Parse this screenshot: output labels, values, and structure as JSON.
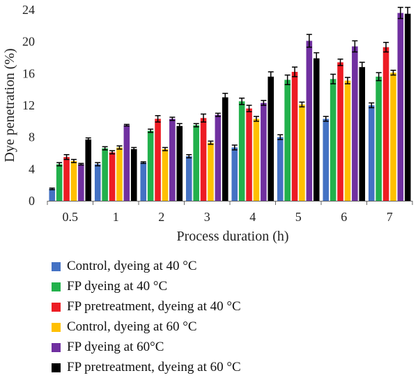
{
  "chart_data": {
    "type": "bar",
    "title": "",
    "xlabel": "Process duration (h)",
    "ylabel": "Dye penetration (%)",
    "ylim": [
      0,
      24
    ],
    "yticks": [
      "0",
      "4",
      "8",
      "12",
      "16",
      "20",
      "24"
    ],
    "categories": [
      "0.5",
      "1",
      "2",
      "3",
      "4",
      "5",
      "6",
      "7"
    ],
    "series": [
      {
        "name": "Control, dyeing at 40 °C",
        "color": "#4472C4",
        "values": [
          1.5,
          4.6,
          4.8,
          5.6,
          6.7,
          8.0,
          10.3,
          12.0
        ],
        "errors": [
          0.1,
          0.2,
          0.1,
          0.2,
          0.3,
          0.3,
          0.3,
          0.3
        ]
      },
      {
        "name": "FP dyeing at 40 °C",
        "color": "#22B14C",
        "values": [
          4.6,
          6.6,
          8.8,
          9.5,
          12.5,
          15.2,
          15.3,
          15.6
        ],
        "errors": [
          0.2,
          0.2,
          0.2,
          0.2,
          0.4,
          0.6,
          0.6,
          0.5
        ]
      },
      {
        "name": "FP pretreatment, dyeing at 40 °C",
        "color": "#ED1C24",
        "values": [
          5.5,
          6.1,
          10.3,
          10.4,
          11.6,
          16.2,
          17.4,
          19.3
        ],
        "errors": [
          0.3,
          0.2,
          0.4,
          0.5,
          0.4,
          0.6,
          0.4,
          0.6
        ]
      },
      {
        "name": "Control, dyeing at 60 °C",
        "color": "#FFC000",
        "values": [
          5.0,
          6.7,
          6.5,
          7.3,
          10.3,
          12.1,
          15.1,
          16.1
        ],
        "errors": [
          0.2,
          0.2,
          0.2,
          0.2,
          0.3,
          0.3,
          0.4,
          0.3
        ]
      },
      {
        "name": "FP dyeing at 60°C",
        "color": "#7030A0",
        "values": [
          4.6,
          9.5,
          10.3,
          10.8,
          12.3,
          20.1,
          19.4,
          23.6
        ],
        "errors": [
          0.1,
          0.1,
          0.2,
          0.2,
          0.3,
          0.8,
          0.7,
          0.7
        ]
      },
      {
        "name": "FP pretreatment, dyeing at 60 °C",
        "color": "#000000",
        "values": [
          7.7,
          6.5,
          9.4,
          13.0,
          15.6,
          17.9,
          16.8,
          23.5
        ],
        "errors": [
          0.2,
          0.2,
          0.3,
          0.5,
          0.6,
          0.7,
          0.6,
          0.8
        ]
      }
    ],
    "grid": false,
    "legend_position": "bottom"
  }
}
